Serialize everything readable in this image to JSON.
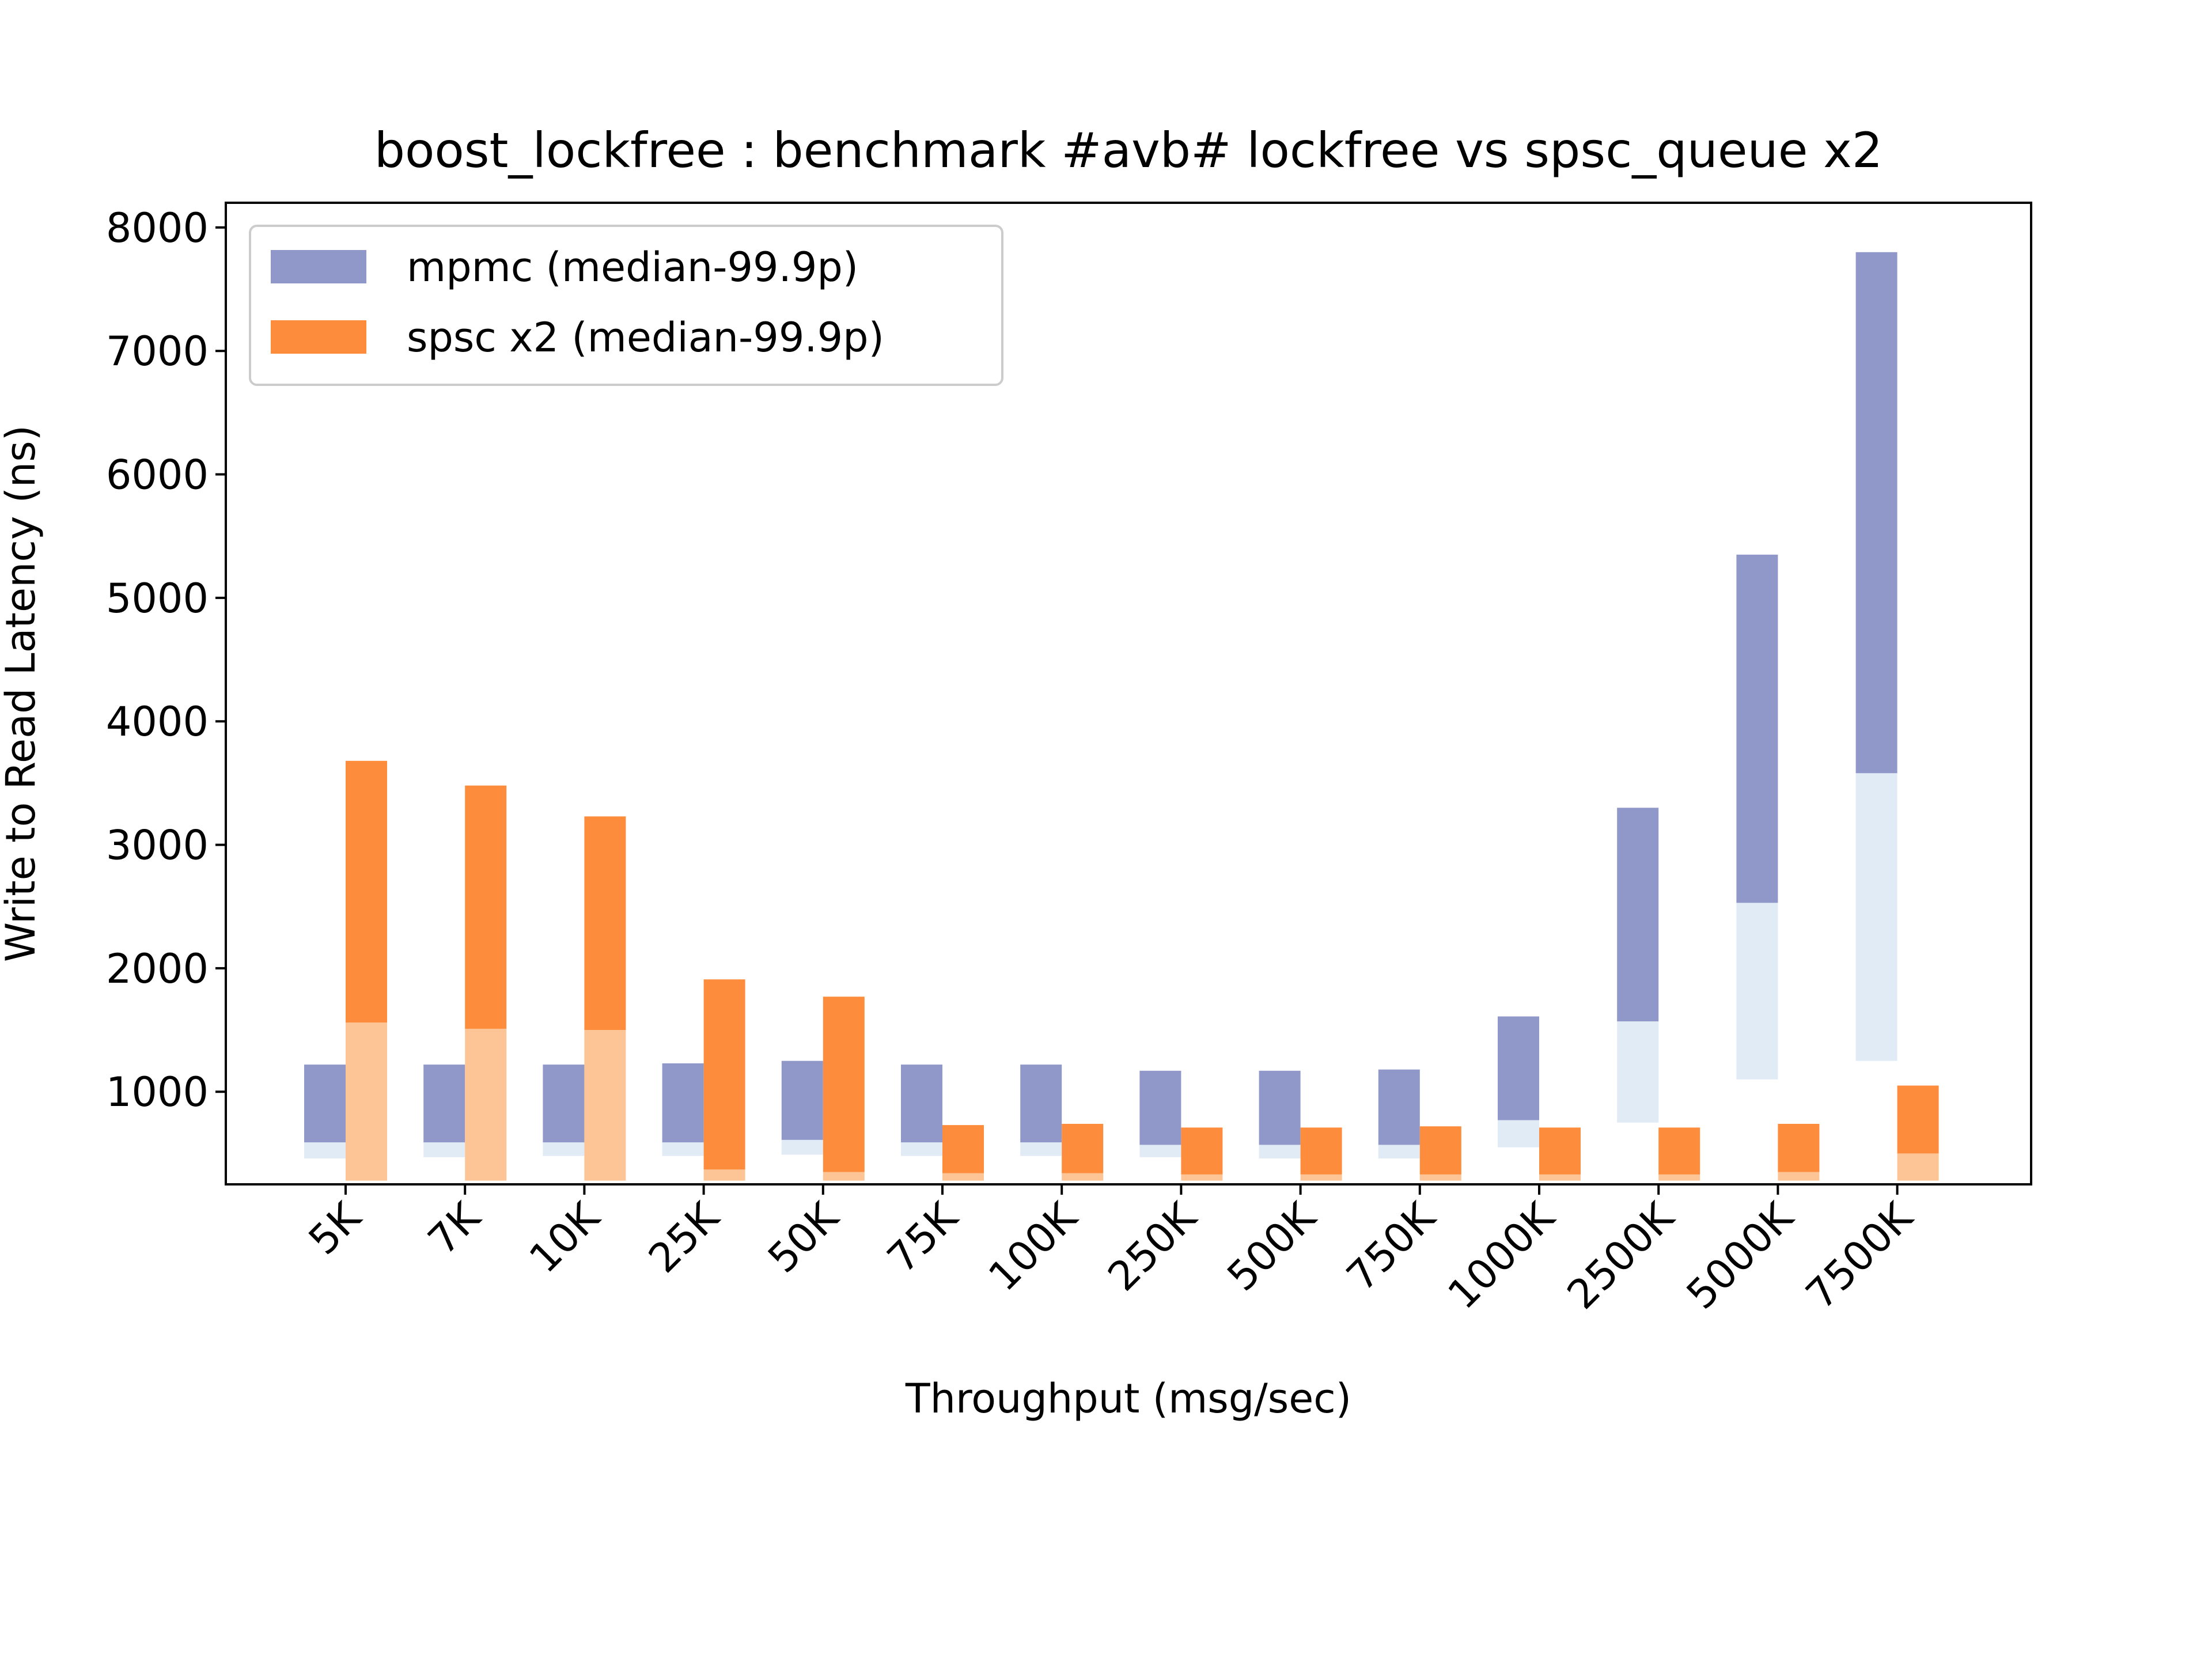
{
  "chart_data": {
    "type": "bar",
    "title": "boost_lockfree : benchmark #avb# lockfree vs spsc_queue x2",
    "xlabel": "Throughput (msg/sec)",
    "ylabel": "Write to Read Latency (ns)",
    "ylim": [
      250,
      8200
    ],
    "yticks": [
      1000,
      2000,
      3000,
      4000,
      5000,
      6000,
      7000,
      8000
    ],
    "categories": [
      "5K",
      "7K",
      "10K",
      "25K",
      "50K",
      "75K",
      "100K",
      "250K",
      "500K",
      "750K",
      "1000K",
      "2500K",
      "5000K",
      "7500K"
    ],
    "legend_position": "upper-left",
    "series": [
      {
        "name": "mpmc (median-99.9p)",
        "color": "#8f98c8",
        "median": [
          590,
          590,
          590,
          590,
          610,
          590,
          590,
          570,
          570,
          570,
          770,
          1570,
          2530,
          3580
        ],
        "p99_9": [
          1220,
          1220,
          1220,
          1230,
          1250,
          1220,
          1220,
          1170,
          1170,
          1180,
          1610,
          3300,
          5350,
          7800
        ],
        "lower_tail": [
          460,
          470,
          480,
          480,
          490,
          480,
          480,
          470,
          460,
          460,
          550,
          750,
          1100,
          1250
        ]
      },
      {
        "name": "spsc x2 (median-99.9p)",
        "color": "#fd8d3c",
        "median": [
          1560,
          1510,
          1500,
          370,
          350,
          340,
          340,
          330,
          330,
          330,
          330,
          330,
          350,
          500
        ],
        "p99_9": [
          3680,
          3480,
          3230,
          1910,
          1770,
          730,
          740,
          710,
          710,
          720,
          710,
          710,
          740,
          1050
        ],
        "lower_tail": [
          280,
          280,
          280,
          280,
          280,
          280,
          280,
          280,
          280,
          280,
          280,
          280,
          280,
          280
        ]
      }
    ]
  }
}
